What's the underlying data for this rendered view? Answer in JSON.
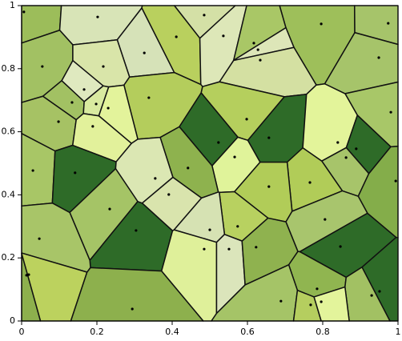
{
  "chart_data": {
    "type": "voronoi",
    "x": [
      0.006,
      0.202,
      0.485,
      0.796,
      0.974,
      0.411,
      0.536,
      0.617,
      0.628,
      0.634,
      0.326,
      0.949,
      0.055,
      0.217,
      0.166,
      0.338,
      0.134,
      0.198,
      0.23,
      0.981,
      0.098,
      0.598,
      0.189,
      0.657,
      0.523,
      0.84,
      0.889,
      0.862,
      0.566,
      0.03,
      0.142,
      0.442,
      0.355,
      0.994,
      0.766,
      0.657,
      0.391,
      0.234,
      0.806,
      0.574,
      0.304,
      0.5,
      0.047,
      0.847,
      0.485,
      0.551,
      0.623,
      0.013,
      0.019,
      0.785,
      0.951,
      0.93,
      0.689,
      0.768,
      0.796,
      0.294
    ],
    "y": [
      0.98,
      0.964,
      0.97,
      0.942,
      0.944,
      0.901,
      0.904,
      0.881,
      0.86,
      0.827,
      0.85,
      0.835,
      0.807,
      0.807,
      0.734,
      0.708,
      0.693,
      0.688,
      0.675,
      0.662,
      0.632,
      0.64,
      0.617,
      0.581,
      0.566,
      0.566,
      0.546,
      0.518,
      0.52,
      0.477,
      0.47,
      0.485,
      0.452,
      0.444,
      0.439,
      0.426,
      0.401,
      0.355,
      0.322,
      0.3,
      0.287,
      0.289,
      0.261,
      0.236,
      0.228,
      0.228,
      0.234,
      0.145,
      0.147,
      0.102,
      0.094,
      0.081,
      0.063,
      0.051,
      0.061,
      0.038
    ],
    "colors": [
      "#9cbd5a",
      "#d8e4b7",
      "#d4e0a6",
      "#9ebf5a",
      "#a6c46a",
      "#b9d05e",
      "#dde7b8",
      "#a9c766",
      "#dde6b8",
      "#d4e0a2",
      "#d6e2b8",
      "#a6c46a",
      "#a2c163",
      "#d9e5a9",
      "#dfe9bf",
      "#b4cd5c",
      "#a2c163",
      "#d9eaa0",
      "#e3f39b",
      "#a8c768",
      "#a6c264",
      "#b5cf5d",
      "#e2f19b",
      "#2e6b28",
      "#2e6b28",
      "#e3f49a",
      "#2e6b28",
      "#a7c46a",
      "#e0f39a",
      "#a8c666",
      "#2e6b28",
      "#8eb24e",
      "#dbe7b3",
      "#84ad4a",
      "#b1cc58",
      "#b1cc58",
      "#d9e4ad",
      "#a5c466",
      "#a8c56d",
      "#b8d160",
      "#2e6b28",
      "#d6e2b3",
      "#a8c568",
      "#2e6b28",
      "#dff09a",
      "#dbe5bb",
      "#8fb24f",
      "#8db04d",
      "#bcd25e",
      "#90b550",
      "#2e6b28",
      "#a2c163",
      "#a5c467",
      "#b5ce5f",
      "#e3f49b",
      "#8db04d"
    ],
    "xlim": [
      0,
      1
    ],
    "ylim": [
      0,
      1
    ],
    "xticks": [
      0,
      0.2,
      0.4,
      0.6,
      0.8,
      1
    ],
    "yticks": [
      0,
      0.2,
      0.4,
      0.6,
      0.8,
      1
    ]
  }
}
